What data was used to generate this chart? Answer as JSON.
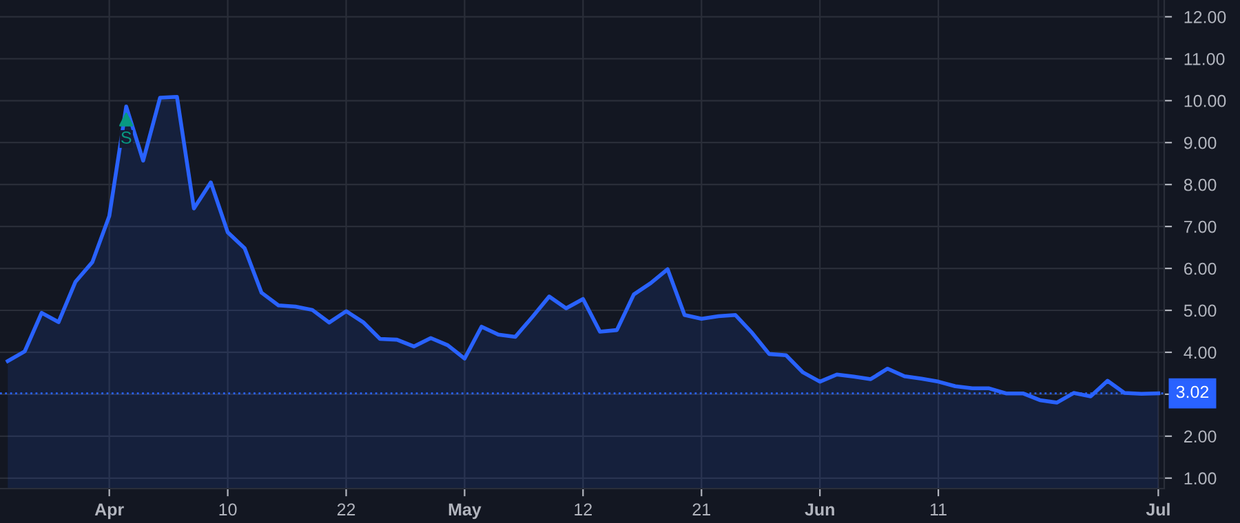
{
  "chart_data": {
    "type": "area",
    "categories": [
      null,
      null,
      null,
      null,
      null,
      null,
      "Apr",
      null,
      null,
      null,
      null,
      null,
      null,
      "10",
      null,
      null,
      null,
      null,
      null,
      null,
      "22",
      null,
      null,
      null,
      null,
      null,
      null,
      "May",
      null,
      null,
      null,
      null,
      null,
      null,
      "12",
      null,
      null,
      null,
      null,
      null,
      null,
      "21",
      null,
      null,
      null,
      null,
      null,
      null,
      "Jun",
      null,
      null,
      null,
      null,
      null,
      null,
      "11",
      null,
      null,
      null,
      null,
      null,
      null,
      null,
      null,
      null,
      null,
      null,
      null,
      "Jul"
    ],
    "series": [
      {
        "color": "#2962ff",
        "values": [
          3.79,
          4.02,
          4.94,
          4.72,
          5.68,
          6.15,
          7.25,
          9.86,
          8.57,
          10.07,
          10.09,
          7.43,
          8.05,
          6.86,
          6.48,
          5.42,
          5.12,
          5.09,
          5.01,
          4.71,
          4.98,
          4.72,
          4.32,
          4.3,
          4.14,
          4.34,
          4.17,
          3.85,
          4.61,
          4.42,
          4.37,
          4.84,
          5.33,
          5.05,
          5.27,
          4.49,
          4.53,
          5.38,
          5.65,
          5.98,
          4.89,
          4.8,
          4.86,
          4.89,
          4.46,
          3.96,
          3.93,
          3.52,
          3.3,
          3.47,
          3.42,
          3.36,
          3.61,
          3.43,
          3.37,
          3.3,
          3.19,
          3.14,
          3.14,
          3.02,
          3.02,
          2.86,
          2.8,
          3.03,
          2.95,
          3.32,
          3.03,
          3.01,
          3.02
        ]
      },
      {
        "type": "scatter",
        "name": "S",
        "color": "#089981",
        "marker": "triangle",
        "values": [
          null,
          null,
          null,
          null,
          null,
          null,
          null,
          9.55,
          null,
          null,
          null,
          null,
          null,
          null,
          null,
          null,
          null,
          null,
          null,
          null,
          null,
          null,
          null,
          null,
          null,
          null,
          null,
          null,
          null,
          null,
          null,
          null,
          null,
          null,
          null,
          null,
          null,
          null,
          null,
          null,
          null,
          null,
          null,
          null,
          null,
          null,
          null,
          null,
          null,
          null,
          null,
          null,
          null,
          null,
          null,
          null,
          null,
          null,
          null,
          null,
          null,
          null,
          null,
          null,
          null,
          null,
          null,
          null,
          null
        ]
      }
    ],
    "ylim": [
      0.75,
      12.4
    ],
    "yticks": [
      {
        "value": 1,
        "label": "1.00"
      },
      {
        "value": 2,
        "label": "2.00"
      },
      {
        "value": 3,
        "label": null
      },
      {
        "value": 4,
        "label": "4.00"
      },
      {
        "value": 5,
        "label": "5.00"
      },
      {
        "value": 6,
        "label": "6.00"
      },
      {
        "value": 7,
        "label": "7.00"
      },
      {
        "value": 8,
        "label": "8.00"
      },
      {
        "value": 9,
        "label": "9.00"
      },
      {
        "value": 10,
        "label": "10.00"
      },
      {
        "value": 11,
        "label": "11.00"
      },
      {
        "value": 12,
        "label": "12.00"
      }
    ],
    "ref_lines": [
      {
        "axis": "y",
        "value": 3.02,
        "label": "3.02",
        "color": "#2962ff",
        "line_style": "dotted"
      }
    ],
    "grid": true,
    "line_style": "solid"
  }
}
